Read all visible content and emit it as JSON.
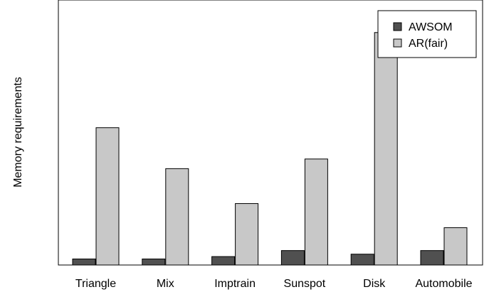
{
  "chart_data": {
    "type": "bar",
    "title": "",
    "xlabel": "",
    "ylabel": "Memory requirements",
    "categories": [
      "Triangle",
      "Mix",
      "Imptrain",
      "Sunspot",
      "Disk",
      "Automobile"
    ],
    "series": [
      {
        "name": "AWSOM",
        "values": [
          0.025,
          0.025,
          0.035,
          0.06,
          0.045,
          0.06
        ]
      },
      {
        "name": "AR(fair)",
        "values": [
          0.57,
          0.4,
          0.255,
          0.44,
          0.965,
          0.155
        ]
      }
    ],
    "ylim": [
      0,
      1.1
    ],
    "y_ticks_shown": false,
    "grid": false,
    "legend_position": "top-right",
    "colors": {
      "AWSOM": "#505050",
      "AR(fair)": "#c8c8c8",
      "outline": "#000000"
    }
  }
}
